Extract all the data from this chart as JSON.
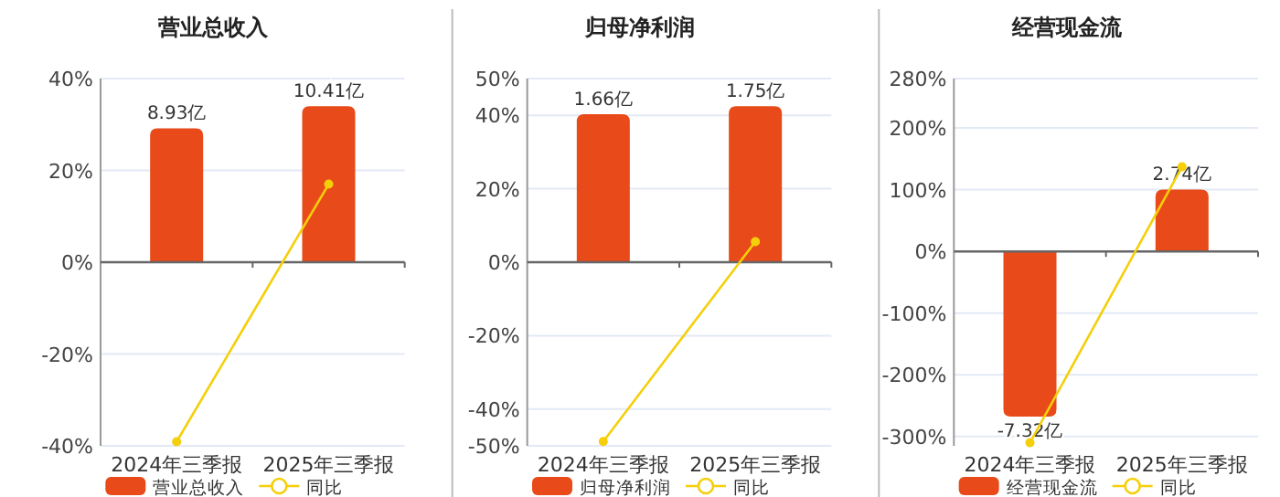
{
  "chart_data": [
    {
      "type": "bar",
      "title": "营业总收入",
      "categories": [
        "2024年三季报",
        "2025年三季报"
      ],
      "legend": "bottom",
      "grid": "y",
      "marker": "circle",
      "series": [
        {
          "name": "营业总收入",
          "color": "#e84a19",
          "values": [
            8.93,
            10.41
          ],
          "value_labels": [
            "8.93亿",
            "10.41亿"
          ],
          "axis": "y2"
        },
        {
          "name": "同比",
          "type": "line",
          "color": "#f5cf0a",
          "values": [
            -39.1,
            17.0
          ]
        }
      ],
      "ylim": [
        -40,
        40
      ],
      "yticks": [
        {
          "value": -40,
          "label": "-40%"
        },
        {
          "value": -20,
          "label": "-20%"
        },
        {
          "value": 0,
          "label": "0%"
        },
        {
          "value": 20,
          "label": "20%"
        },
        {
          "value": 40,
          "label": "40%"
        }
      ]
    },
    {
      "type": "bar",
      "title": "归母净利润",
      "categories": [
        "2024年三季报",
        "2025年三季报"
      ],
      "legend": "bottom",
      "grid": "y",
      "marker": "circle",
      "series": [
        {
          "name": "归母净利润",
          "color": "#e84a19",
          "values": [
            1.66,
            1.75
          ],
          "value_labels": [
            "1.66亿",
            "1.75亿"
          ],
          "axis": "y2"
        },
        {
          "name": "同比",
          "type": "line",
          "color": "#f5cf0a",
          "values": [
            -48.8,
            5.6
          ]
        }
      ],
      "ylim": [
        -50,
        50
      ],
      "yticks": [
        {
          "value": -50,
          "label": "-50%"
        },
        {
          "value": -40,
          "label": "-40%"
        },
        {
          "value": -20,
          "label": "-20%"
        },
        {
          "value": 0,
          "label": "0%"
        },
        {
          "value": 20,
          "label": "20%"
        },
        {
          "value": 40,
          "label": "40%"
        },
        {
          "value": 50,
          "label": "50%"
        }
      ]
    },
    {
      "type": "bar",
      "title": "经营现金流",
      "categories": [
        "2024年三季报",
        "2025年三季报"
      ],
      "legend": "bottom",
      "grid": "y",
      "marker": "circle",
      "series": [
        {
          "name": "经营现金流",
          "color": "#e84a19",
          "values": [
            -7.32,
            2.74
          ],
          "value_labels": [
            "-7.32亿",
            "2.74亿"
          ],
          "axis": "y2"
        },
        {
          "name": "同比",
          "type": "line",
          "color": "#f5cf0a",
          "values": [
            -310,
            137
          ]
        }
      ],
      "ylim": [
        -315,
        280
      ],
      "yticks": [
        {
          "value": -300,
          "label": "-300%"
        },
        {
          "value": -200,
          "label": "-200%"
        },
        {
          "value": -100,
          "label": "-100%"
        },
        {
          "value": 0,
          "label": "0%"
        },
        {
          "value": 100,
          "label": "100%"
        },
        {
          "value": 200,
          "label": "200%"
        },
        {
          "value": 280,
          "label": "280%"
        }
      ]
    }
  ]
}
